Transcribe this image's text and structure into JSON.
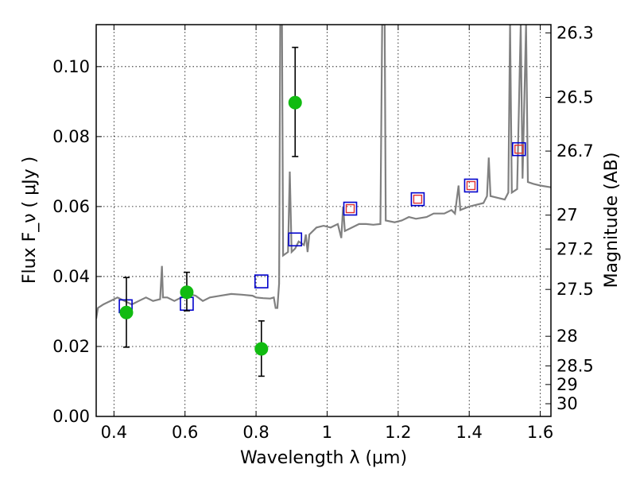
{
  "chart_data": {
    "type": "scatter",
    "xlabel": "Wavelength  λ (μm)",
    "ylabel": "Flux  F_ν  ( μJy )",
    "y2label": "Magnitude (AB)",
    "xlim": [
      0.35,
      1.63
    ],
    "ylim": [
      0.0,
      0.112
    ],
    "grid": true,
    "x_ticks": [
      0.4,
      0.6,
      0.8,
      1.0,
      1.2,
      1.4,
      1.6
    ],
    "x_tick_labels": [
      "0.4",
      "0.6",
      "0.8",
      "1",
      "1.2",
      "1.4",
      "1.6"
    ],
    "y_ticks": [
      0.0,
      0.02,
      0.04,
      0.06,
      0.08,
      0.1
    ],
    "y_tick_labels": [
      "0.00",
      "0.02",
      "0.04",
      "0.06",
      "0.08",
      "0.10"
    ],
    "mag_ticks": [
      26.3,
      26.5,
      26.7,
      27,
      27.2,
      27.5,
      28,
      28.5,
      29,
      30
    ],
    "mag_tick_labels": [
      "26.3",
      "26.5",
      "26.7",
      "27",
      "27.2",
      "27.5",
      "28",
      "28.5",
      "29",
      "30"
    ],
    "series": [
      {
        "type": "line",
        "color": "#808080",
        "points": [
          [
            0.35,
            0.028
          ],
          [
            0.355,
            0.031
          ],
          [
            0.37,
            0.032
          ],
          [
            0.39,
            0.033
          ],
          [
            0.41,
            0.034
          ],
          [
            0.43,
            0.033
          ],
          [
            0.45,
            0.032
          ],
          [
            0.47,
            0.033
          ],
          [
            0.49,
            0.034
          ],
          [
            0.51,
            0.033
          ],
          [
            0.53,
            0.0335
          ],
          [
            0.535,
            0.043
          ],
          [
            0.538,
            0.034
          ],
          [
            0.55,
            0.034
          ],
          [
            0.57,
            0.033
          ],
          [
            0.59,
            0.034
          ],
          [
            0.61,
            0.035
          ],
          [
            0.63,
            0.0345
          ],
          [
            0.65,
            0.033
          ],
          [
            0.67,
            0.034
          ],
          [
            0.7,
            0.0345
          ],
          [
            0.73,
            0.035
          ],
          [
            0.76,
            0.0348
          ],
          [
            0.79,
            0.0345
          ],
          [
            0.8,
            0.034
          ],
          [
            0.82,
            0.0338
          ],
          [
            0.84,
            0.0337
          ],
          [
            0.85,
            0.034
          ],
          [
            0.855,
            0.031
          ],
          [
            0.86,
            0.031
          ],
          [
            0.865,
            0.038
          ],
          [
            0.868,
            0.112
          ],
          [
            0.873,
            0.112
          ],
          [
            0.876,
            0.046
          ],
          [
            0.89,
            0.047
          ],
          [
            0.895,
            0.07
          ],
          [
            0.9,
            0.047
          ],
          [
            0.91,
            0.048
          ],
          [
            0.92,
            0.05
          ],
          [
            0.935,
            0.049
          ],
          [
            0.94,
            0.052
          ],
          [
            0.945,
            0.047
          ],
          [
            0.95,
            0.052
          ],
          [
            0.97,
            0.054
          ],
          [
            0.99,
            0.0545
          ],
          [
            1.01,
            0.054
          ],
          [
            1.03,
            0.055
          ],
          [
            1.04,
            0.051
          ],
          [
            1.045,
            0.06
          ],
          [
            1.05,
            0.053
          ],
          [
            1.07,
            0.054
          ],
          [
            1.09,
            0.055
          ],
          [
            1.11,
            0.055
          ],
          [
            1.13,
            0.0548
          ],
          [
            1.15,
            0.055
          ],
          [
            1.155,
            0.112
          ],
          [
            1.162,
            0.112
          ],
          [
            1.165,
            0.056
          ],
          [
            1.19,
            0.0555
          ],
          [
            1.21,
            0.056
          ],
          [
            1.23,
            0.057
          ],
          [
            1.25,
            0.0565
          ],
          [
            1.28,
            0.057
          ],
          [
            1.3,
            0.058
          ],
          [
            1.33,
            0.058
          ],
          [
            1.35,
            0.059
          ],
          [
            1.36,
            0.058
          ],
          [
            1.37,
            0.066
          ],
          [
            1.375,
            0.059
          ],
          [
            1.4,
            0.06
          ],
          [
            1.42,
            0.0605
          ],
          [
            1.44,
            0.061
          ],
          [
            1.45,
            0.063
          ],
          [
            1.455,
            0.074
          ],
          [
            1.46,
            0.063
          ],
          [
            1.48,
            0.0625
          ],
          [
            1.5,
            0.062
          ],
          [
            1.51,
            0.064
          ],
          [
            1.515,
            0.112
          ],
          [
            1.52,
            0.064
          ],
          [
            1.535,
            0.065
          ],
          [
            1.545,
            0.112
          ],
          [
            1.55,
            0.068
          ],
          [
            1.56,
            0.112
          ],
          [
            1.565,
            0.067
          ],
          [
            1.58,
            0.0665
          ],
          [
            1.6,
            0.066
          ],
          [
            1.63,
            0.0655
          ]
        ]
      },
      {
        "type": "scatter",
        "marker": "open-square",
        "color": "#0000cc",
        "points": [
          [
            0.433,
            0.0315
          ],
          [
            0.605,
            0.0322
          ],
          [
            0.815,
            0.0386
          ],
          [
            0.91,
            0.0506
          ],
          [
            1.065,
            0.0594
          ],
          [
            1.255,
            0.0621
          ],
          [
            1.405,
            0.066
          ],
          [
            1.54,
            0.0764
          ]
        ]
      },
      {
        "type": "scatter",
        "marker": "open-square-small",
        "color": "#e03030",
        "points": [
          [
            1.065,
            0.0594
          ],
          [
            1.255,
            0.0621
          ],
          [
            1.405,
            0.066
          ],
          [
            1.54,
            0.0764
          ]
        ]
      },
      {
        "type": "scatter",
        "marker": "circle",
        "color": "#11bb11",
        "errorbar_color": "#000000",
        "points": [
          [
            0.435,
            0.0297,
            0.0198,
            0.0397
          ],
          [
            0.605,
            0.0355,
            0.0302,
            0.0412
          ],
          [
            0.815,
            0.0193,
            0.0115,
            0.0273
          ],
          [
            0.91,
            0.0897,
            0.0743,
            0.1055
          ]
        ]
      }
    ]
  }
}
